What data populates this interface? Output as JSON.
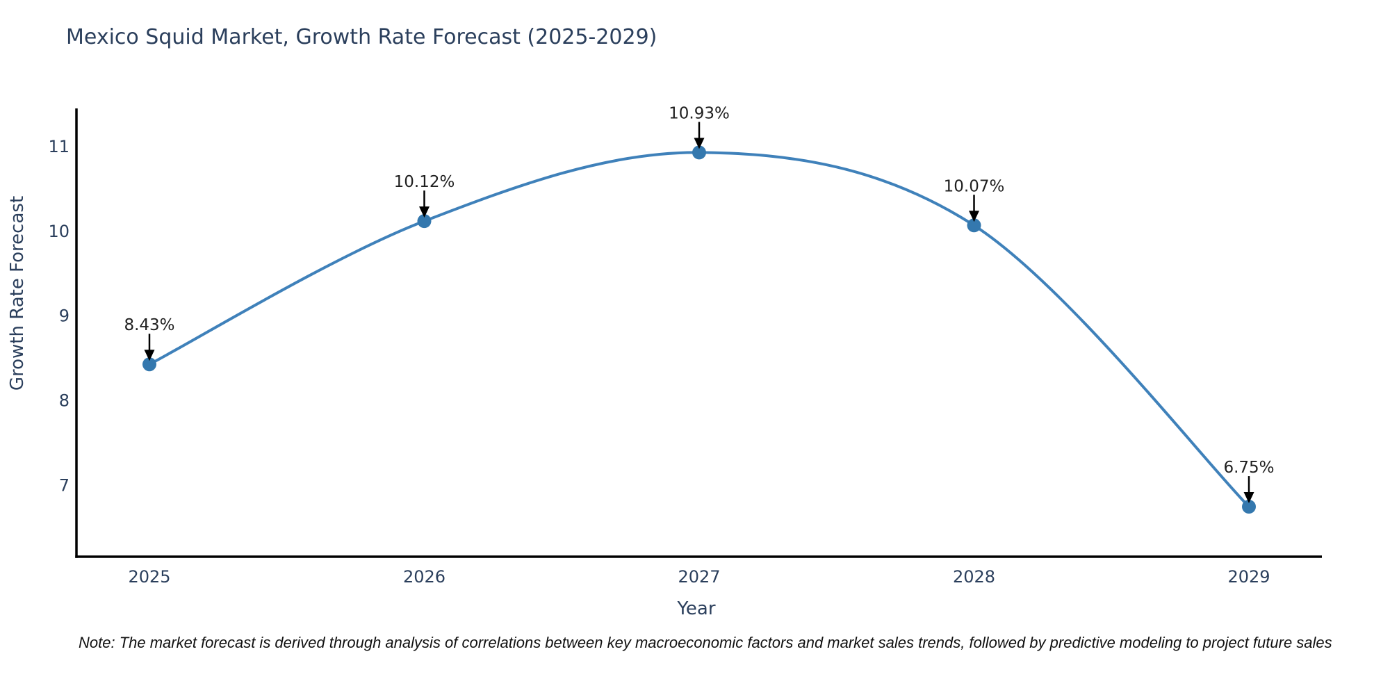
{
  "note": "Note: The market forecast is derived through analysis of correlations between key macroeconomic factors and market sales trends, followed by predictive modeling to project future sales",
  "chart_data": {
    "type": "line",
    "title": "Mexico Squid Market, Growth Rate Forecast (2025-2029)",
    "xlabel": "Year",
    "ylabel": "Growth Rate Forecast",
    "categories": [
      "2025",
      "2026",
      "2027",
      "2028",
      "2029"
    ],
    "values": [
      8.43,
      10.12,
      10.93,
      10.07,
      6.75
    ],
    "point_labels": [
      "8.43%",
      "10.12%",
      "10.93%",
      "10.07%",
      "6.75%"
    ],
    "yticks": [
      7,
      8,
      9,
      10,
      11
    ],
    "ylim": [
      6.16,
      11.45
    ],
    "grid": false,
    "legend_position": "none",
    "line_shape": "spline",
    "colors": {
      "line": "#3f81ba",
      "marker": "#3478ae",
      "axis": "#000000",
      "axis_text": "#2b3f5c",
      "annotation_text": "#1f1f1f",
      "background": "#ffffff"
    }
  }
}
